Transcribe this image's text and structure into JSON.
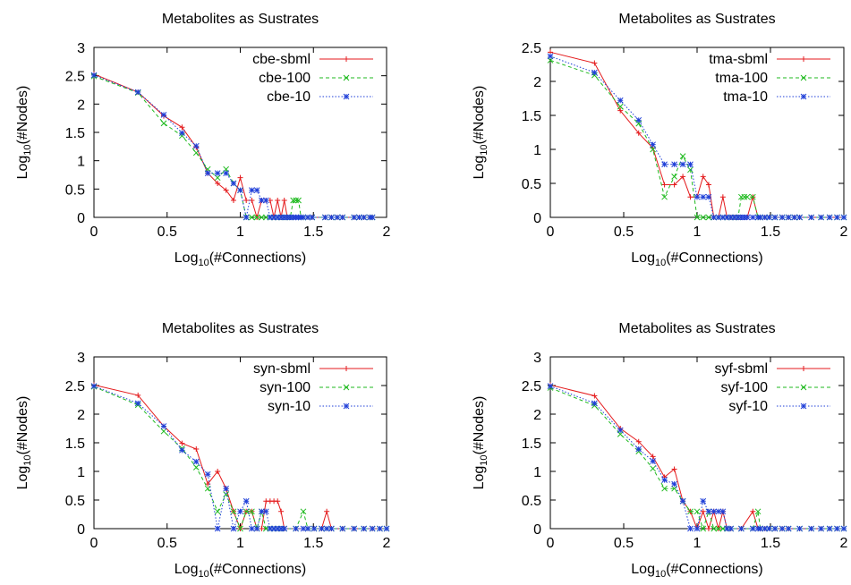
{
  "chart_data": [
    {
      "type": "line",
      "title": "Metabolites as Sustrates",
      "xlabel": {
        "pre": "Log",
        "sub": "10",
        "post": "(#Connections)"
      },
      "ylabel": {
        "pre": "Log",
        "sub": "10",
        "post": "(#Nodes)"
      },
      "xlim": [
        0,
        2
      ],
      "ylim": [
        0,
        3
      ],
      "xticks": [
        0,
        0.5,
        1,
        1.5,
        2
      ],
      "xtick_labels": [
        "0",
        "0.5",
        "1",
        "1.5",
        "2"
      ],
      "yticks": [
        0,
        0.5,
        1,
        1.5,
        2,
        2.5,
        3
      ],
      "ytick_labels": [
        "0",
        "0.5",
        "1",
        "1.5",
        "2",
        "2.5",
        "3"
      ],
      "legend": "top-right",
      "series": [
        {
          "name": "cbe-sbml",
          "color": "#e41a1c",
          "marker": "plus",
          "x": [
            0,
            0.301,
            0.477,
            0.602,
            0.699,
            0.778,
            0.845,
            0.903,
            0.954,
            1.0,
            1.041,
            1.079,
            1.114,
            1.146,
            1.176,
            1.204,
            1.23,
            1.255,
            1.279,
            1.301,
            1.322,
            1.342,
            1.362,
            1.38,
            1.398,
            1.415,
            1.431,
            1.462,
            1.491,
            1.58,
            1.623,
            1.663,
            1.699,
            1.778,
            1.813,
            1.845,
            1.886,
            1.903
          ],
          "y": [
            2.53,
            2.21,
            1.79,
            1.59,
            1.24,
            0.78,
            0.6,
            0.48,
            0.3,
            0.7,
            0.3,
            0.3,
            0,
            0.3,
            0.3,
            0.3,
            0,
            0.3,
            0,
            0.3,
            0,
            0,
            0,
            0,
            0,
            0,
            0,
            0,
            0,
            0,
            0,
            0,
            0,
            0,
            0,
            0,
            0,
            0
          ]
        },
        {
          "name": "cbe-100",
          "color": "#1fba1f",
          "marker": "cross",
          "x": [
            0,
            0.301,
            0.477,
            0.602,
            0.699,
            0.778,
            0.845,
            0.903,
            0.954,
            1.0,
            1.041,
            1.079,
            1.114,
            1.146,
            1.176,
            1.204,
            1.23,
            1.255,
            1.279,
            1.301,
            1.322,
            1.342,
            1.362,
            1.38,
            1.398,
            1.415,
            1.431,
            1.462,
            1.491,
            1.58,
            1.623,
            1.663,
            1.699,
            1.778,
            1.813,
            1.845,
            1.886,
            1.903
          ],
          "y": [
            2.49,
            2.2,
            1.66,
            1.44,
            1.14,
            0.85,
            0.7,
            0.85,
            0.6,
            0.48,
            0,
            0,
            0,
            0,
            0,
            0,
            0,
            0,
            0,
            0,
            0,
            0,
            0.3,
            0.3,
            0.3,
            0,
            0,
            0,
            0,
            0,
            0,
            0,
            0,
            0,
            0,
            0,
            0,
            0
          ]
        },
        {
          "name": "cbe-10",
          "color": "#1f3fd8",
          "marker": "star",
          "x": [
            0,
            0.301,
            0.477,
            0.602,
            0.699,
            0.778,
            0.845,
            0.903,
            0.954,
            1.0,
            1.041,
            1.079,
            1.114,
            1.146,
            1.176,
            1.204,
            1.23,
            1.255,
            1.279,
            1.301,
            1.322,
            1.342,
            1.362,
            1.38,
            1.398,
            1.415,
            1.431,
            1.462,
            1.491,
            1.58,
            1.623,
            1.663,
            1.699,
            1.778,
            1.813,
            1.845,
            1.886,
            1.903
          ],
          "y": [
            2.51,
            2.21,
            1.81,
            1.49,
            1.26,
            0.78,
            0.78,
            0.78,
            0.6,
            0.48,
            0,
            0.48,
            0.48,
            0.3,
            0.3,
            0,
            0,
            0,
            0,
            0,
            0,
            0,
            0,
            0,
            0,
            0,
            0,
            0,
            0,
            0,
            0,
            0,
            0,
            0,
            0,
            0,
            0,
            0
          ]
        }
      ]
    },
    {
      "type": "line",
      "title": "Metabolites as Sustrates",
      "xlabel": {
        "pre": "Log",
        "sub": "10",
        "post": "(#Connections)"
      },
      "ylabel": {
        "pre": "Log",
        "sub": "10",
        "post": "(#Nodes)"
      },
      "xlim": [
        0,
        2
      ],
      "ylim": [
        0,
        2.5
      ],
      "xticks": [
        0,
        0.5,
        1,
        1.5,
        2
      ],
      "xtick_labels": [
        "0",
        "0.5",
        "1",
        "1.5",
        "2"
      ],
      "yticks": [
        0,
        0.5,
        1,
        1.5,
        2,
        2.5
      ],
      "ytick_labels": [
        "0",
        "0.5",
        "1",
        "1.5",
        "2",
        "2.5"
      ],
      "legend": "top-right",
      "series": [
        {
          "name": "tma-sbml",
          "color": "#e41a1c",
          "marker": "plus",
          "x": [
            0,
            0.301,
            0.477,
            0.602,
            0.699,
            0.778,
            0.845,
            0.903,
            0.954,
            1.0,
            1.041,
            1.079,
            1.114,
            1.146,
            1.176,
            1.204,
            1.23,
            1.255,
            1.279,
            1.301,
            1.322,
            1.342,
            1.38,
            1.415,
            1.431,
            1.462,
            1.491,
            1.531,
            1.58,
            1.623,
            1.663,
            1.699,
            1.778,
            1.845,
            1.903,
            1.954,
            2.0
          ],
          "y": [
            2.43,
            2.27,
            1.57,
            1.24,
            1.02,
            0.48,
            0.48,
            0.6,
            0.3,
            0.3,
            0.6,
            0.48,
            0,
            0,
            0.3,
            0,
            0,
            0,
            0,
            0,
            0,
            0,
            0.3,
            0,
            0,
            0,
            0,
            0,
            0,
            0,
            0,
            0,
            0,
            0,
            0,
            0,
            0
          ]
        },
        {
          "name": "tma-100",
          "color": "#1fba1f",
          "marker": "cross",
          "x": [
            0,
            0.301,
            0.477,
            0.602,
            0.699,
            0.778,
            0.845,
            0.903,
            0.954,
            1.0,
            1.041,
            1.079,
            1.114,
            1.146,
            1.176,
            1.204,
            1.23,
            1.255,
            1.279,
            1.301,
            1.322,
            1.342,
            1.38,
            1.415,
            1.431,
            1.462,
            1.491,
            1.531,
            1.58,
            1.623,
            1.663,
            1.699,
            1.778,
            1.845,
            1.903,
            1.954,
            2.0
          ],
          "y": [
            2.31,
            2.09,
            1.63,
            1.38,
            1.0,
            0.3,
            0.6,
            0.9,
            0.7,
            0,
            0,
            0,
            0,
            0,
            0,
            0,
            0,
            0,
            0,
            0.3,
            0.3,
            0.3,
            0.3,
            0,
            0,
            0,
            0,
            0,
            0,
            0,
            0,
            0,
            0,
            0,
            0,
            0,
            0
          ]
        },
        {
          "name": "tma-10",
          "color": "#1f3fd8",
          "marker": "star",
          "x": [
            0,
            0.301,
            0.477,
            0.602,
            0.699,
            0.778,
            0.845,
            0.903,
            0.954,
            1.0,
            1.041,
            1.079,
            1.114,
            1.146,
            1.176,
            1.204,
            1.23,
            1.255,
            1.279,
            1.301,
            1.322,
            1.342,
            1.38,
            1.415,
            1.431,
            1.462,
            1.491,
            1.531,
            1.58,
            1.623,
            1.663,
            1.699,
            1.778,
            1.845,
            1.903,
            1.954,
            2.0
          ],
          "y": [
            2.37,
            2.13,
            1.72,
            1.43,
            1.07,
            0.78,
            0.78,
            0.78,
            0.78,
            0.3,
            0.3,
            0.3,
            0,
            0,
            0,
            0,
            0,
            0,
            0,
            0,
            0,
            0,
            0,
            0,
            0,
            0,
            0,
            0,
            0,
            0,
            0,
            0,
            0,
            0,
            0,
            0,
            0
          ]
        }
      ]
    },
    {
      "type": "line",
      "title": "Metabolites as Sustrates",
      "xlabel": {
        "pre": "Log",
        "sub": "10",
        "post": "(#Connections)"
      },
      "ylabel": {
        "pre": "Log",
        "sub": "10",
        "post": "(#Nodes)"
      },
      "xlim": [
        0,
        2
      ],
      "ylim": [
        0,
        3
      ],
      "xticks": [
        0,
        0.5,
        1,
        1.5,
        2
      ],
      "xtick_labels": [
        "0",
        "0.5",
        "1",
        "1.5",
        "2"
      ],
      "yticks": [
        0,
        0.5,
        1,
        1.5,
        2,
        2.5,
        3
      ],
      "ytick_labels": [
        "0",
        "0.5",
        "1",
        "1.5",
        "2",
        "2.5",
        "3"
      ],
      "legend": "top-right",
      "series": [
        {
          "name": "syn-sbml",
          "color": "#e41a1c",
          "marker": "plus",
          "x": [
            0,
            0.301,
            0.477,
            0.602,
            0.699,
            0.778,
            0.845,
            0.903,
            0.954,
            1.0,
            1.041,
            1.079,
            1.114,
            1.146,
            1.176,
            1.204,
            1.23,
            1.255,
            1.279,
            1.301,
            1.38,
            1.431,
            1.462,
            1.505,
            1.556,
            1.591,
            1.623,
            1.699,
            1.778,
            1.845,
            1.903,
            1.954,
            2.0
          ],
          "y": [
            2.51,
            2.33,
            1.79,
            1.49,
            1.39,
            0.78,
            1.0,
            0.7,
            0.3,
            0,
            0.3,
            0.3,
            0,
            0,
            0.48,
            0.48,
            0.48,
            0.48,
            0.3,
            0,
            0,
            0,
            0,
            0,
            0,
            0.3,
            0,
            0,
            0,
            0,
            0,
            0,
            0
          ]
        },
        {
          "name": "syn-100",
          "color": "#1fba1f",
          "marker": "cross",
          "x": [
            0,
            0.301,
            0.477,
            0.602,
            0.699,
            0.778,
            0.845,
            0.903,
            0.954,
            1.0,
            1.041,
            1.079,
            1.114,
            1.146,
            1.176,
            1.204,
            1.23,
            1.255,
            1.279,
            1.301,
            1.38,
            1.431,
            1.462,
            1.505,
            1.556,
            1.591,
            1.623,
            1.699,
            1.778,
            1.845,
            1.903,
            1.954,
            2.0
          ],
          "y": [
            2.48,
            2.16,
            1.7,
            1.4,
            1.07,
            0.7,
            0.3,
            0.6,
            0.3,
            0,
            0.3,
            0.3,
            0,
            0.3,
            0,
            0,
            0,
            0,
            0,
            0,
            0,
            0.3,
            0,
            0,
            0,
            0,
            0,
            0,
            0,
            0,
            0,
            0,
            0
          ]
        },
        {
          "name": "syn-10",
          "color": "#1f3fd8",
          "marker": "star",
          "x": [
            0,
            0.301,
            0.477,
            0.602,
            0.699,
            0.778,
            0.845,
            0.903,
            0.954,
            1.0,
            1.041,
            1.079,
            1.114,
            1.146,
            1.176,
            1.204,
            1.23,
            1.255,
            1.279,
            1.301,
            1.38,
            1.431,
            1.462,
            1.505,
            1.556,
            1.591,
            1.623,
            1.699,
            1.778,
            1.845,
            1.903,
            1.954,
            2.0
          ],
          "y": [
            2.49,
            2.19,
            1.79,
            1.37,
            1.17,
            0.95,
            0,
            0.7,
            0,
            0.3,
            0.48,
            0,
            0,
            0.3,
            0.3,
            0,
            0,
            0,
            0,
            0,
            0,
            0,
            0,
            0,
            0,
            0,
            0,
            0,
            0,
            0,
            0,
            0,
            0
          ]
        }
      ]
    },
    {
      "type": "line",
      "title": "Metabolites as Sustrates",
      "xlabel": {
        "pre": "Log",
        "sub": "10",
        "post": "(#Connections)"
      },
      "ylabel": {
        "pre": "Log",
        "sub": "10",
        "post": "(#Nodes)"
      },
      "xlim": [
        0,
        2
      ],
      "ylim": [
        0,
        3
      ],
      "xticks": [
        0,
        0.5,
        1,
        1.5,
        2
      ],
      "xtick_labels": [
        "0",
        "0.5",
        "1",
        "1.5",
        "2"
      ],
      "yticks": [
        0,
        0.5,
        1,
        1.5,
        2,
        2.5,
        3
      ],
      "ytick_labels": [
        "0",
        "0.5",
        "1",
        "1.5",
        "2",
        "2.5",
        "3"
      ],
      "legend": "top-right",
      "series": [
        {
          "name": "syf-sbml",
          "color": "#e41a1c",
          "marker": "plus",
          "x": [
            0,
            0.301,
            0.477,
            0.602,
            0.699,
            0.778,
            0.845,
            0.903,
            0.954,
            1.0,
            1.041,
            1.079,
            1.114,
            1.146,
            1.176,
            1.204,
            1.23,
            1.301,
            1.38,
            1.415,
            1.431,
            1.462,
            1.491,
            1.531,
            1.58,
            1.623,
            1.699,
            1.778,
            1.845,
            1.903,
            1.954,
            2.0
          ],
          "y": [
            2.51,
            2.32,
            1.75,
            1.52,
            1.26,
            0.9,
            1.04,
            0.48,
            0.3,
            0,
            0.3,
            0,
            0.3,
            0,
            0.3,
            0,
            0,
            0,
            0.3,
            0,
            0,
            0,
            0,
            0,
            0,
            0,
            0,
            0,
            0,
            0,
            0,
            0
          ]
        },
        {
          "name": "syf-100",
          "color": "#1fba1f",
          "marker": "cross",
          "x": [
            0,
            0.301,
            0.477,
            0.602,
            0.699,
            0.778,
            0.845,
            0.903,
            0.954,
            1.0,
            1.041,
            1.079,
            1.114,
            1.146,
            1.176,
            1.204,
            1.23,
            1.301,
            1.38,
            1.415,
            1.431,
            1.462,
            1.491,
            1.531,
            1.58,
            1.623,
            1.699,
            1.778,
            1.845,
            1.903,
            1.954,
            2.0
          ],
          "y": [
            2.46,
            2.15,
            1.65,
            1.35,
            1.05,
            0.7,
            0.7,
            0.48,
            0.3,
            0.3,
            0,
            0.3,
            0,
            0,
            0,
            0,
            0,
            0,
            0,
            0.3,
            0,
            0,
            0,
            0,
            0,
            0,
            0,
            0,
            0,
            0,
            0,
            0
          ]
        },
        {
          "name": "syf-10",
          "color": "#1f3fd8",
          "marker": "star",
          "x": [
            0,
            0.301,
            0.477,
            0.602,
            0.699,
            0.778,
            0.845,
            0.903,
            0.954,
            1.0,
            1.041,
            1.079,
            1.114,
            1.146,
            1.176,
            1.204,
            1.23,
            1.301,
            1.38,
            1.415,
            1.431,
            1.462,
            1.491,
            1.531,
            1.58,
            1.623,
            1.699,
            1.778,
            1.845,
            1.903,
            1.954,
            2.0
          ],
          "y": [
            2.49,
            2.19,
            1.72,
            1.39,
            1.18,
            0.85,
            0.78,
            0.48,
            0,
            0,
            0.48,
            0.3,
            0.3,
            0.3,
            0.3,
            0,
            0,
            0,
            0,
            0,
            0,
            0,
            0,
            0,
            0,
            0,
            0,
            0,
            0,
            0,
            0,
            0
          ]
        }
      ]
    }
  ]
}
